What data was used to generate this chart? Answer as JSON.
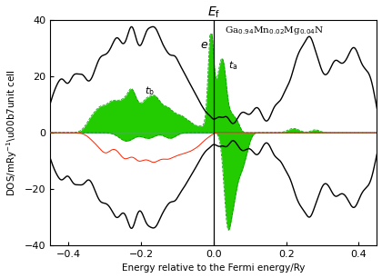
{
  "title": "$E_{\\mathrm{f}}$",
  "xlabel": "Energy relative to the Fermi energy/Ry",
  "ylabel": "DOS/mRy$^{-1}$\\u00b7unit cell",
  "xlim": [
    -0.45,
    0.45
  ],
  "ylim": [
    -40,
    40
  ],
  "xticks": [
    -0.4,
    -0.2,
    0.0,
    0.2,
    0.4
  ],
  "yticks": [
    -40,
    -20,
    0,
    20,
    40
  ],
  "formula_text": "Ga$_{0.94}$Mn$_{0.02}$Mg$_{0.04}$N",
  "label_e": "$e$",
  "label_tb": "$t_{\\mathrm{b}}$",
  "label_ta": "$t_{\\mathrm{a}}$",
  "color_black": "#000000",
  "color_green": "#22CC00",
  "color_red": "#FF2200",
  "color_blue": "#3333BB",
  "color_dashed_green": "#009900",
  "background": "#FFFFFF"
}
